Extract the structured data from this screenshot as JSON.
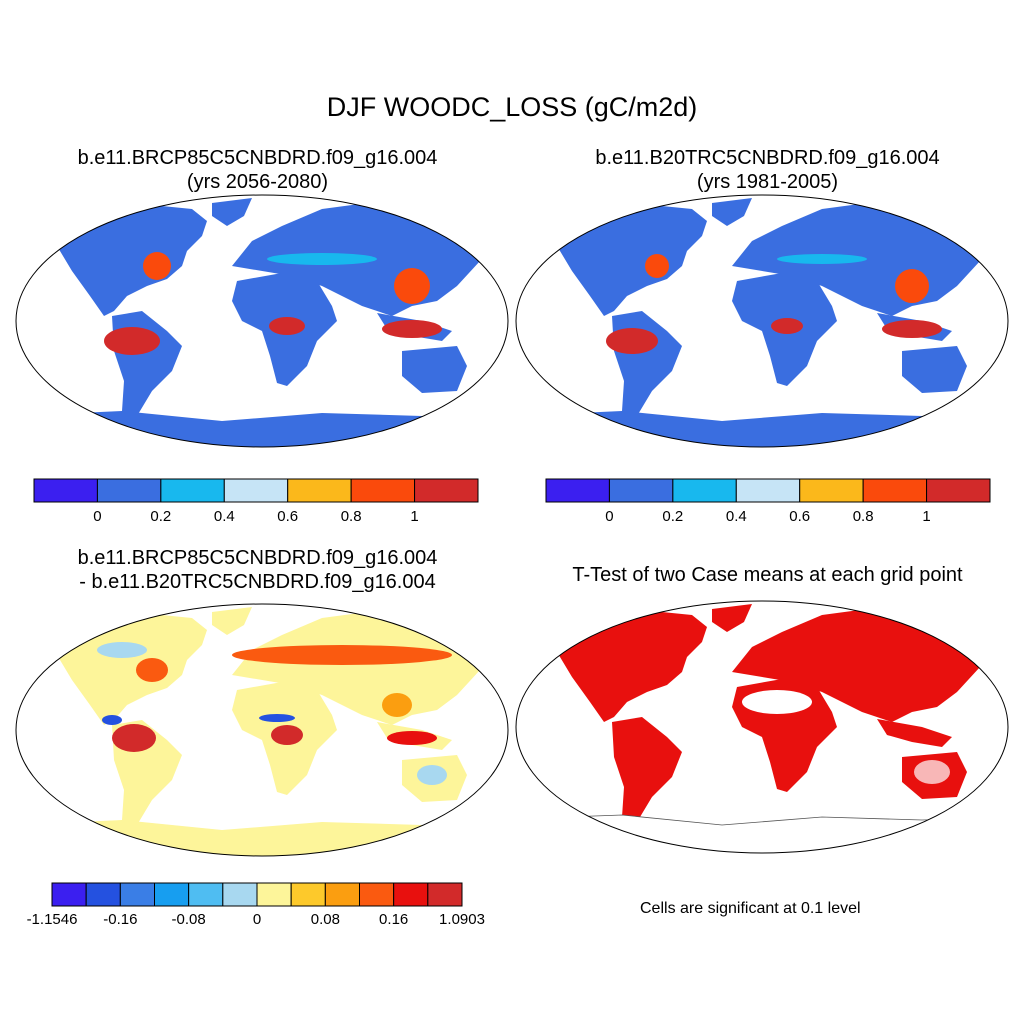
{
  "main_title": "DJF WOODC_LOSS (gC/m2d)",
  "panels": [
    {
      "title_line1": "b.e11.BRCP85C5CNBDRD.f09_g16.004",
      "title_line2": "(yrs 2056-2080)",
      "colorbar": {
        "colors": [
          "#3b1ff0",
          "#3a6ee0",
          "#18b8ee",
          "#c6e4f6",
          "#fbb81b",
          "#fa4a0c",
          "#d22a2a"
        ],
        "labels": [
          "0",
          "0.2",
          "0.4",
          "0.6",
          "0.8",
          "1"
        ]
      }
    },
    {
      "title_line1": "b.e11.B20TRC5CNBDRD.f09_g16.004",
      "title_line2": "(yrs 1981-2005)",
      "colorbar": {
        "colors": [
          "#3b1ff0",
          "#3a6ee0",
          "#18b8ee",
          "#c6e4f6",
          "#fbb81b",
          "#fa4a0c",
          "#d22a2a"
        ],
        "labels": [
          "0",
          "0.2",
          "0.4",
          "0.6",
          "0.8",
          "1"
        ]
      }
    },
    {
      "title_line1": "b.e11.BRCP85C5CNBDRD.f09_g16.004",
      "title_line2": "- b.e11.B20TRC5CNBDRD.f09_g16.004",
      "colorbar": {
        "colors": [
          "#3b1ff0",
          "#2451e0",
          "#3a7ee6",
          "#179ef0",
          "#4fbdf2",
          "#a8d8f0",
          "#fdf59a",
          "#fdc92b",
          "#fb9e10",
          "#fa5a10",
          "#e8100e",
          "#d22a2a"
        ],
        "labels": [
          "-1.1546",
          "-0.16",
          "-0.08",
          "0",
          "0.08",
          "0.16",
          "1.0903"
        ]
      }
    },
    {
      "title_line1": "T-Test of two Case means at each grid point",
      "note": "Cells are significant at 0.1 level"
    }
  ]
}
